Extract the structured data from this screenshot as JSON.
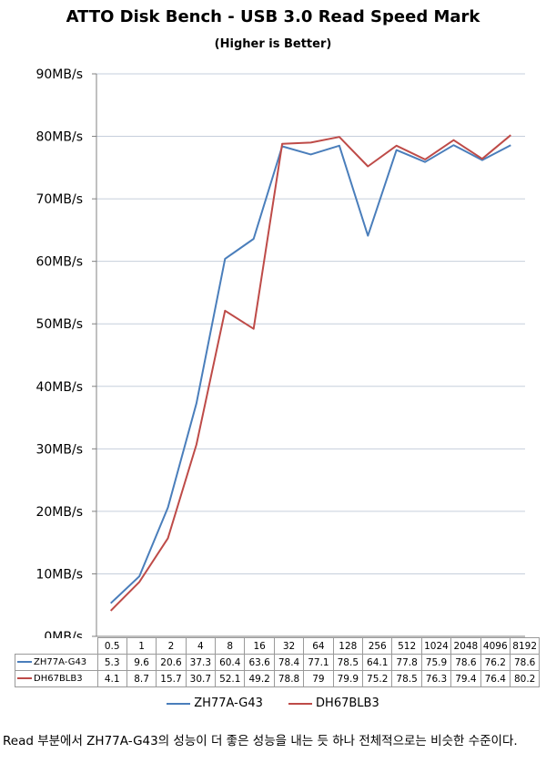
{
  "chart_data": {
    "type": "line",
    "title": "ATTO Disk Bench - USB 3.0 Read Speed Mark",
    "subtitle": "(Higher is Better)",
    "x": [
      "0.5",
      "1",
      "2",
      "4",
      "8",
      "16",
      "32",
      "64",
      "128",
      "256",
      "512",
      "1024",
      "2048",
      "4096",
      "8192"
    ],
    "yticks": [
      "0MB/s",
      "10MB/s",
      "20MB/s",
      "30MB/s",
      "40MB/s",
      "50MB/s",
      "60MB/s",
      "70MB/s",
      "80MB/s",
      "90MB/s"
    ],
    "ylim": [
      0,
      90
    ],
    "grid": true,
    "legend_position": "bottom",
    "series": [
      {
        "name": "ZH77A-G43",
        "color": "#4a7ebb",
        "values": [
          5.3,
          9.6,
          20.6,
          37.3,
          60.4,
          63.6,
          78.4,
          77.1,
          78.5,
          64.1,
          77.8,
          75.9,
          78.6,
          76.2,
          78.6
        ]
      },
      {
        "name": "DH67BLB3",
        "color": "#be4b48",
        "values": [
          4.1,
          8.7,
          15.7,
          30.7,
          52.1,
          49.2,
          78.8,
          79.0,
          79.9,
          75.2,
          78.5,
          76.3,
          79.4,
          76.4,
          80.2
        ]
      }
    ]
  },
  "caption": "Read 부분에서 ZH77A-G43의 성능이 더 좋은 성능을 내는 듯 하나 전체적으로는 비슷한 수준이다."
}
